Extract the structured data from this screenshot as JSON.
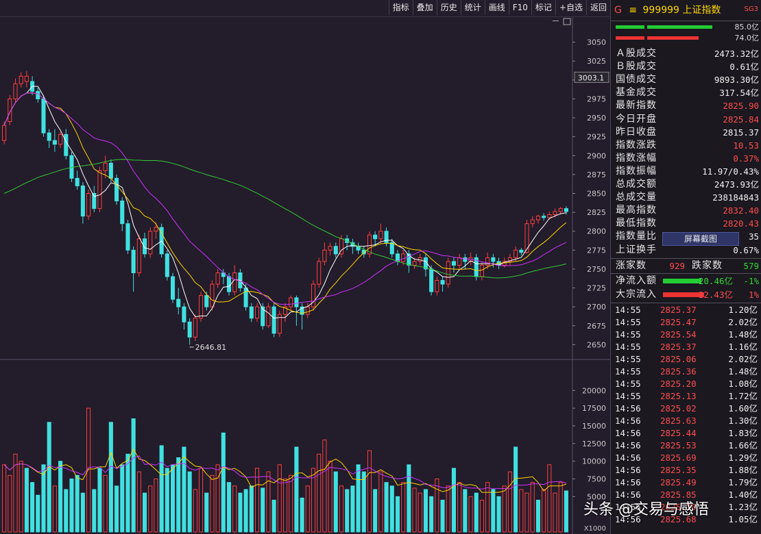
{
  "toolbar": {
    "buttons": [
      "指标",
      "叠加",
      "历史",
      "统计",
      "画线",
      "F10",
      "标记",
      "+自选",
      "返回"
    ]
  },
  "chart_data": {
    "type": "candlestick",
    "price_axis": {
      "ticks": [
        3050,
        3025,
        3000,
        2975,
        2950,
        2925,
        2900,
        2875,
        2850,
        2825,
        2800,
        2775,
        2750,
        2725,
        2700,
        2675,
        2650
      ],
      "range": [
        2635,
        3065
      ]
    },
    "current_marker": "3003.1",
    "low_annotation": {
      "text": "2646.81",
      "value": 2646.81
    },
    "volume_axis": {
      "ticks": [
        20000,
        17500,
        15000,
        12500,
        10000,
        7500,
        5000
      ],
      "range": [
        0,
        21000
      ],
      "unit": "X1000"
    },
    "candles": [
      [
        2920,
        2940,
        2915,
        2945,
        "r"
      ],
      [
        2945,
        2975,
        2940,
        2980,
        "r"
      ],
      [
        2975,
        2995,
        2970,
        3002,
        "r"
      ],
      [
        2995,
        3005,
        2990,
        3010,
        "r"
      ],
      [
        3005,
        2998,
        2990,
        3012,
        "r"
      ],
      [
        2998,
        2985,
        2980,
        3005,
        "g"
      ],
      [
        2985,
        2975,
        2970,
        2990,
        "g"
      ],
      [
        2975,
        2930,
        2925,
        2980,
        "g"
      ],
      [
        2930,
        2920,
        2910,
        2935,
        "g"
      ],
      [
        2920,
        2915,
        2905,
        2935,
        "g"
      ],
      [
        2915,
        2928,
        2910,
        2932,
        "r"
      ],
      [
        2928,
        2900,
        2895,
        2935,
        "g"
      ],
      [
        2900,
        2870,
        2865,
        2905,
        "g"
      ],
      [
        2870,
        2860,
        2855,
        2880,
        "g"
      ],
      [
        2860,
        2820,
        2810,
        2865,
        "g"
      ],
      [
        2820,
        2850,
        2815,
        2855,
        "r"
      ],
      [
        2850,
        2830,
        2825,
        2860,
        "g"
      ],
      [
        2830,
        2880,
        2825,
        2885,
        "r"
      ],
      [
        2880,
        2890,
        2870,
        2900,
        "r"
      ],
      [
        2890,
        2870,
        2865,
        2895,
        "g"
      ],
      [
        2870,
        2840,
        2835,
        2875,
        "g"
      ],
      [
        2840,
        2810,
        2800,
        2845,
        "g"
      ],
      [
        2810,
        2775,
        2770,
        2815,
        "g"
      ],
      [
        2775,
        2745,
        2720,
        2780,
        "g"
      ],
      [
        2745,
        2790,
        2740,
        2795,
        "r"
      ],
      [
        2790,
        2770,
        2765,
        2798,
        "g"
      ],
      [
        2770,
        2800,
        2765,
        2805,
        "r"
      ],
      [
        2800,
        2805,
        2790,
        2812,
        "r"
      ],
      [
        2805,
        2770,
        2765,
        2810,
        "g"
      ],
      [
        2770,
        2740,
        2735,
        2775,
        "g"
      ],
      [
        2740,
        2710,
        2705,
        2745,
        "g"
      ],
      [
        2710,
        2700,
        2690,
        2725,
        "g"
      ],
      [
        2700,
        2680,
        2670,
        2705,
        "g"
      ],
      [
        2680,
        2660,
        2650,
        2685,
        "g"
      ],
      [
        2660,
        2685,
        2655,
        2690,
        "r"
      ],
      [
        2685,
        2715,
        2680,
        2720,
        "r"
      ],
      [
        2715,
        2700,
        2695,
        2720,
        "g"
      ],
      [
        2700,
        2730,
        2695,
        2735,
        "r"
      ],
      [
        2730,
        2745,
        2725,
        2750,
        "r"
      ],
      [
        2745,
        2740,
        2730,
        2750,
        "g"
      ],
      [
        2740,
        2720,
        2715,
        2745,
        "g"
      ],
      [
        2720,
        2745,
        2715,
        2755,
        "r"
      ],
      [
        2745,
        2725,
        2720,
        2750,
        "g"
      ],
      [
        2725,
        2700,
        2695,
        2730,
        "g"
      ],
      [
        2700,
        2685,
        2680,
        2705,
        "g"
      ],
      [
        2685,
        2700,
        2680,
        2705,
        "r"
      ],
      [
        2700,
        2675,
        2670,
        2705,
        "g"
      ],
      [
        2675,
        2700,
        2672,
        2705,
        "r"
      ],
      [
        2700,
        2665,
        2660,
        2705,
        "g"
      ],
      [
        2665,
        2690,
        2660,
        2695,
        "r"
      ],
      [
        2690,
        2700,
        2680,
        2705,
        "r"
      ],
      [
        2700,
        2712,
        2695,
        2715,
        "r"
      ],
      [
        2712,
        2700,
        2675,
        2715,
        "g"
      ],
      [
        2700,
        2690,
        2670,
        2705,
        "g"
      ],
      [
        2690,
        2700,
        2685,
        2705,
        "r"
      ],
      [
        2700,
        2730,
        2695,
        2735,
        "r"
      ],
      [
        2730,
        2760,
        2725,
        2765,
        "r"
      ],
      [
        2760,
        2775,
        2755,
        2785,
        "r"
      ],
      [
        2775,
        2780,
        2768,
        2785,
        "r"
      ],
      [
        2780,
        2770,
        2765,
        2785,
        "g"
      ],
      [
        2770,
        2790,
        2765,
        2795,
        "r"
      ],
      [
        2790,
        2785,
        2775,
        2795,
        "g"
      ],
      [
        2785,
        2780,
        2770,
        2790,
        "g"
      ],
      [
        2780,
        2775,
        2770,
        2785,
        "g"
      ],
      [
        2775,
        2770,
        2765,
        2780,
        "g"
      ],
      [
        2770,
        2795,
        2765,
        2800,
        "r"
      ],
      [
        2795,
        2790,
        2780,
        2800,
        "g"
      ],
      [
        2790,
        2800,
        2785,
        2810,
        "r"
      ],
      [
        2800,
        2785,
        2780,
        2805,
        "g"
      ],
      [
        2785,
        2770,
        2765,
        2790,
        "g"
      ],
      [
        2770,
        2760,
        2755,
        2775,
        "g"
      ],
      [
        2760,
        2770,
        2755,
        2775,
        "r"
      ],
      [
        2770,
        2755,
        2745,
        2775,
        "g"
      ],
      [
        2755,
        2760,
        2750,
        2765,
        "r"
      ],
      [
        2760,
        2765,
        2755,
        2770,
        "r"
      ],
      [
        2765,
        2750,
        2740,
        2770,
        "g"
      ],
      [
        2750,
        2720,
        2715,
        2755,
        "g"
      ],
      [
        2720,
        2735,
        2715,
        2740,
        "r"
      ],
      [
        2735,
        2730,
        2720,
        2740,
        "g"
      ],
      [
        2730,
        2760,
        2725,
        2765,
        "r"
      ],
      [
        2760,
        2755,
        2745,
        2765,
        "g"
      ],
      [
        2755,
        2765,
        2750,
        2770,
        "r"
      ],
      [
        2765,
        2760,
        2750,
        2770,
        "g"
      ],
      [
        2760,
        2765,
        2755,
        2772,
        "r"
      ],
      [
        2765,
        2740,
        2735,
        2770,
        "g"
      ],
      [
        2740,
        2755,
        2735,
        2760,
        "r"
      ],
      [
        2755,
        2765,
        2750,
        2772,
        "r"
      ],
      [
        2765,
        2760,
        2752,
        2770,
        "g"
      ],
      [
        2760,
        2755,
        2750,
        2765,
        "g"
      ],
      [
        2755,
        2760,
        2752,
        2765,
        "r"
      ],
      [
        2760,
        2765,
        2755,
        2770,
        "r"
      ],
      [
        2765,
        2775,
        2760,
        2780,
        "r"
      ],
      [
        2775,
        2772,
        2768,
        2778,
        "g"
      ],
      [
        2772,
        2810,
        2770,
        2815,
        "r"
      ],
      [
        2810,
        2815,
        2805,
        2820,
        "r"
      ],
      [
        2815,
        2820,
        2810,
        2822,
        "r"
      ],
      [
        2820,
        2818,
        2814,
        2824,
        "g"
      ],
      [
        2818,
        2822,
        2815,
        2826,
        "r"
      ],
      [
        2822,
        2826,
        2818,
        2830,
        "r"
      ],
      [
        2826,
        2830,
        2822,
        2832,
        "r"
      ],
      [
        2830,
        2826,
        2822,
        2833,
        "g"
      ]
    ],
    "volumes": [
      [
        9500,
        "r"
      ],
      [
        8000,
        "r"
      ],
      [
        11000,
        "r"
      ],
      [
        10000,
        "r"
      ],
      [
        9000,
        "g"
      ],
      [
        7000,
        "g"
      ],
      [
        5200,
        "g"
      ],
      [
        9500,
        "g"
      ],
      [
        15500,
        "g"
      ],
      [
        6500,
        "r"
      ],
      [
        10000,
        "g"
      ],
      [
        6000,
        "g"
      ],
      [
        7500,
        "g"
      ],
      [
        8000,
        "g"
      ],
      [
        5500,
        "g"
      ],
      [
        17500,
        "r"
      ],
      [
        6000,
        "g"
      ],
      [
        9000,
        "g"
      ],
      [
        8000,
        "r"
      ],
      [
        15500,
        "g"
      ],
      [
        6500,
        "g"
      ],
      [
        9500,
        "g"
      ],
      [
        11000,
        "g"
      ],
      [
        16000,
        "g"
      ],
      [
        8500,
        "r"
      ],
      [
        5500,
        "g"
      ],
      [
        6500,
        "r"
      ],
      [
        7500,
        "r"
      ],
      [
        12200,
        "g"
      ],
      [
        9000,
        "g"
      ],
      [
        9500,
        "g"
      ],
      [
        10500,
        "g"
      ],
      [
        12000,
        "g"
      ],
      [
        8500,
        "g"
      ],
      [
        6000,
        "r"
      ],
      [
        9000,
        "r"
      ],
      [
        5500,
        "g"
      ],
      [
        8000,
        "r"
      ],
      [
        9500,
        "r"
      ],
      [
        14000,
        "g"
      ],
      [
        7000,
        "g"
      ],
      [
        6500,
        "r"
      ],
      [
        5500,
        "g"
      ],
      [
        6000,
        "g"
      ],
      [
        6500,
        "g"
      ],
      [
        9000,
        "r"
      ],
      [
        6200,
        "g"
      ],
      [
        8500,
        "r"
      ],
      [
        4500,
        "g"
      ],
      [
        9500,
        "r"
      ],
      [
        7500,
        "r"
      ],
      [
        8000,
        "r"
      ],
      [
        12000,
        "g"
      ],
      [
        4800,
        "g"
      ],
      [
        6500,
        "r"
      ],
      [
        9000,
        "r"
      ],
      [
        11000,
        "r"
      ],
      [
        13000,
        "r"
      ],
      [
        10000,
        "r"
      ],
      [
        8500,
        "g"
      ],
      [
        6500,
        "r"
      ],
      [
        6000,
        "g"
      ],
      [
        6500,
        "g"
      ],
      [
        9500,
        "g"
      ],
      [
        8500,
        "g"
      ],
      [
        11500,
        "r"
      ],
      [
        6000,
        "g"
      ],
      [
        8500,
        "r"
      ],
      [
        7000,
        "g"
      ],
      [
        6500,
        "g"
      ],
      [
        5000,
        "g"
      ],
      [
        7000,
        "r"
      ],
      [
        9500,
        "g"
      ],
      [
        6200,
        "r"
      ],
      [
        5500,
        "r"
      ],
      [
        6000,
        "g"
      ],
      [
        5000,
        "g"
      ],
      [
        7500,
        "r"
      ],
      [
        4500,
        "g"
      ],
      [
        6500,
        "r"
      ],
      [
        9000,
        "g"
      ],
      [
        7000,
        "r"
      ],
      [
        6000,
        "g"
      ],
      [
        5000,
        "r"
      ],
      [
        5500,
        "g"
      ],
      [
        4500,
        "r"
      ],
      [
        7000,
        "r"
      ],
      [
        6000,
        "g"
      ],
      [
        5000,
        "g"
      ],
      [
        6500,
        "r"
      ],
      [
        8500,
        "r"
      ],
      [
        12000,
        "g"
      ],
      [
        6000,
        "r"
      ],
      [
        5500,
        "r"
      ],
      [
        7000,
        "r"
      ],
      [
        4500,
        "g"
      ],
      [
        6000,
        "r"
      ],
      [
        9500,
        "r"
      ],
      [
        5500,
        "r"
      ],
      [
        7000,
        "r"
      ],
      [
        5800,
        "g"
      ]
    ],
    "ma_colors": {
      "ma5": "#ffffff",
      "ma10": "#ffd700",
      "ma20": "#cc33ff",
      "ma60": "#33cc33"
    },
    "colors": {
      "up": "#ff4040",
      "down": "#40e0e0"
    }
  },
  "panel": {
    "header": {
      "code": "999999",
      "name": "上证指数",
      "left_tag": "G",
      "menu_glyph": "≡",
      "right_tag": "SG3"
    },
    "bars": [
      {
        "value": "85.0亿",
        "color": "#22cc33"
      },
      {
        "value": "74.0亿",
        "color": "#ee3333"
      }
    ],
    "stats": [
      {
        "label": "Ａ股成交",
        "value": "2473.32亿",
        "color": "white"
      },
      {
        "label": "Ｂ股成交",
        "value": "0.61亿",
        "color": "white"
      },
      {
        "label": "国债成交",
        "value": "9893.30亿",
        "color": "white"
      },
      {
        "label": "基金成交",
        "value": "317.54亿",
        "color": "white"
      },
      {
        "label": "最新指数",
        "value": "2825.90",
        "color": "red"
      },
      {
        "label": "今日开盘",
        "value": "2825.84",
        "color": "red"
      },
      {
        "label": "昨日收盘",
        "value": "2815.37",
        "color": "white"
      },
      {
        "label": "指数涨跌",
        "value": "10.53",
        "color": "red"
      },
      {
        "label": "指数涨幅",
        "value": "0.37%",
        "color": "red"
      },
      {
        "label": "指数振幅",
        "value": "11.97/0.43%",
        "color": "white"
      },
      {
        "label": "总成交额",
        "value": "2473.93亿",
        "color": "white"
      },
      {
        "label": "总成交量",
        "value": "238184843",
        "color": "white"
      },
      {
        "label": "最高指数",
        "value": "2832.40",
        "color": "red"
      },
      {
        "label": "最低指数",
        "value": "2820.43",
        "color": "red"
      },
      {
        "label": "指数量比",
        "value": "35",
        "color": "white"
      },
      {
        "label": "上证换手",
        "value": "0.67%",
        "color": "white"
      }
    ],
    "screenshot_button": "屏幕截图",
    "breadth": {
      "up_label": "涨家数",
      "up_value": "929",
      "down_label": "跌家数",
      "down_value": "579"
    },
    "flows": [
      {
        "label": "净流入额",
        "value": "-20.46亿",
        "pct": "-1%",
        "color": "green"
      },
      {
        "label": "大宗流入",
        "value": "22.43亿",
        "pct": "1%",
        "color": "red"
      }
    ],
    "ticks": [
      {
        "time": "14:55",
        "price": "2825.37",
        "vol": "1.20亿"
      },
      {
        "time": "14:55",
        "price": "2825.47",
        "vol": "2.02亿"
      },
      {
        "time": "14:55",
        "price": "2825.54",
        "vol": "1.48亿"
      },
      {
        "time": "14:55",
        "price": "2825.37",
        "vol": "1.16亿"
      },
      {
        "time": "14:55",
        "price": "2825.06",
        "vol": "2.02亿"
      },
      {
        "time": "14:55",
        "price": "2825.36",
        "vol": "1.48亿"
      },
      {
        "time": "14:55",
        "price": "2825.20",
        "vol": "1.08亿"
      },
      {
        "time": "14:55",
        "price": "2825.13",
        "vol": "1.72亿"
      },
      {
        "time": "14:56",
        "price": "2825.02",
        "vol": "1.60亿"
      },
      {
        "time": "14:56",
        "price": "2825.63",
        "vol": "1.30亿"
      },
      {
        "time": "14:56",
        "price": "2825.44",
        "vol": "1.83亿"
      },
      {
        "time": "14:56",
        "price": "2825.53",
        "vol": "1.66亿"
      },
      {
        "time": "14:56",
        "price": "2825.69",
        "vol": "1.29亿"
      },
      {
        "time": "14:56",
        "price": "2825.35",
        "vol": "1.88亿"
      },
      {
        "time": "14:56",
        "price": "2825.49",
        "vol": "1.79亿"
      },
      {
        "time": "14:56",
        "price": "2825.85",
        "vol": "1.40亿"
      },
      {
        "time": "14:56",
        "price": "2825.70",
        "vol": "1.23亿"
      },
      {
        "time": "14:56",
        "price": "2825.68",
        "vol": "1.05亿"
      }
    ]
  },
  "watermark": "头条 @交易与感悟"
}
